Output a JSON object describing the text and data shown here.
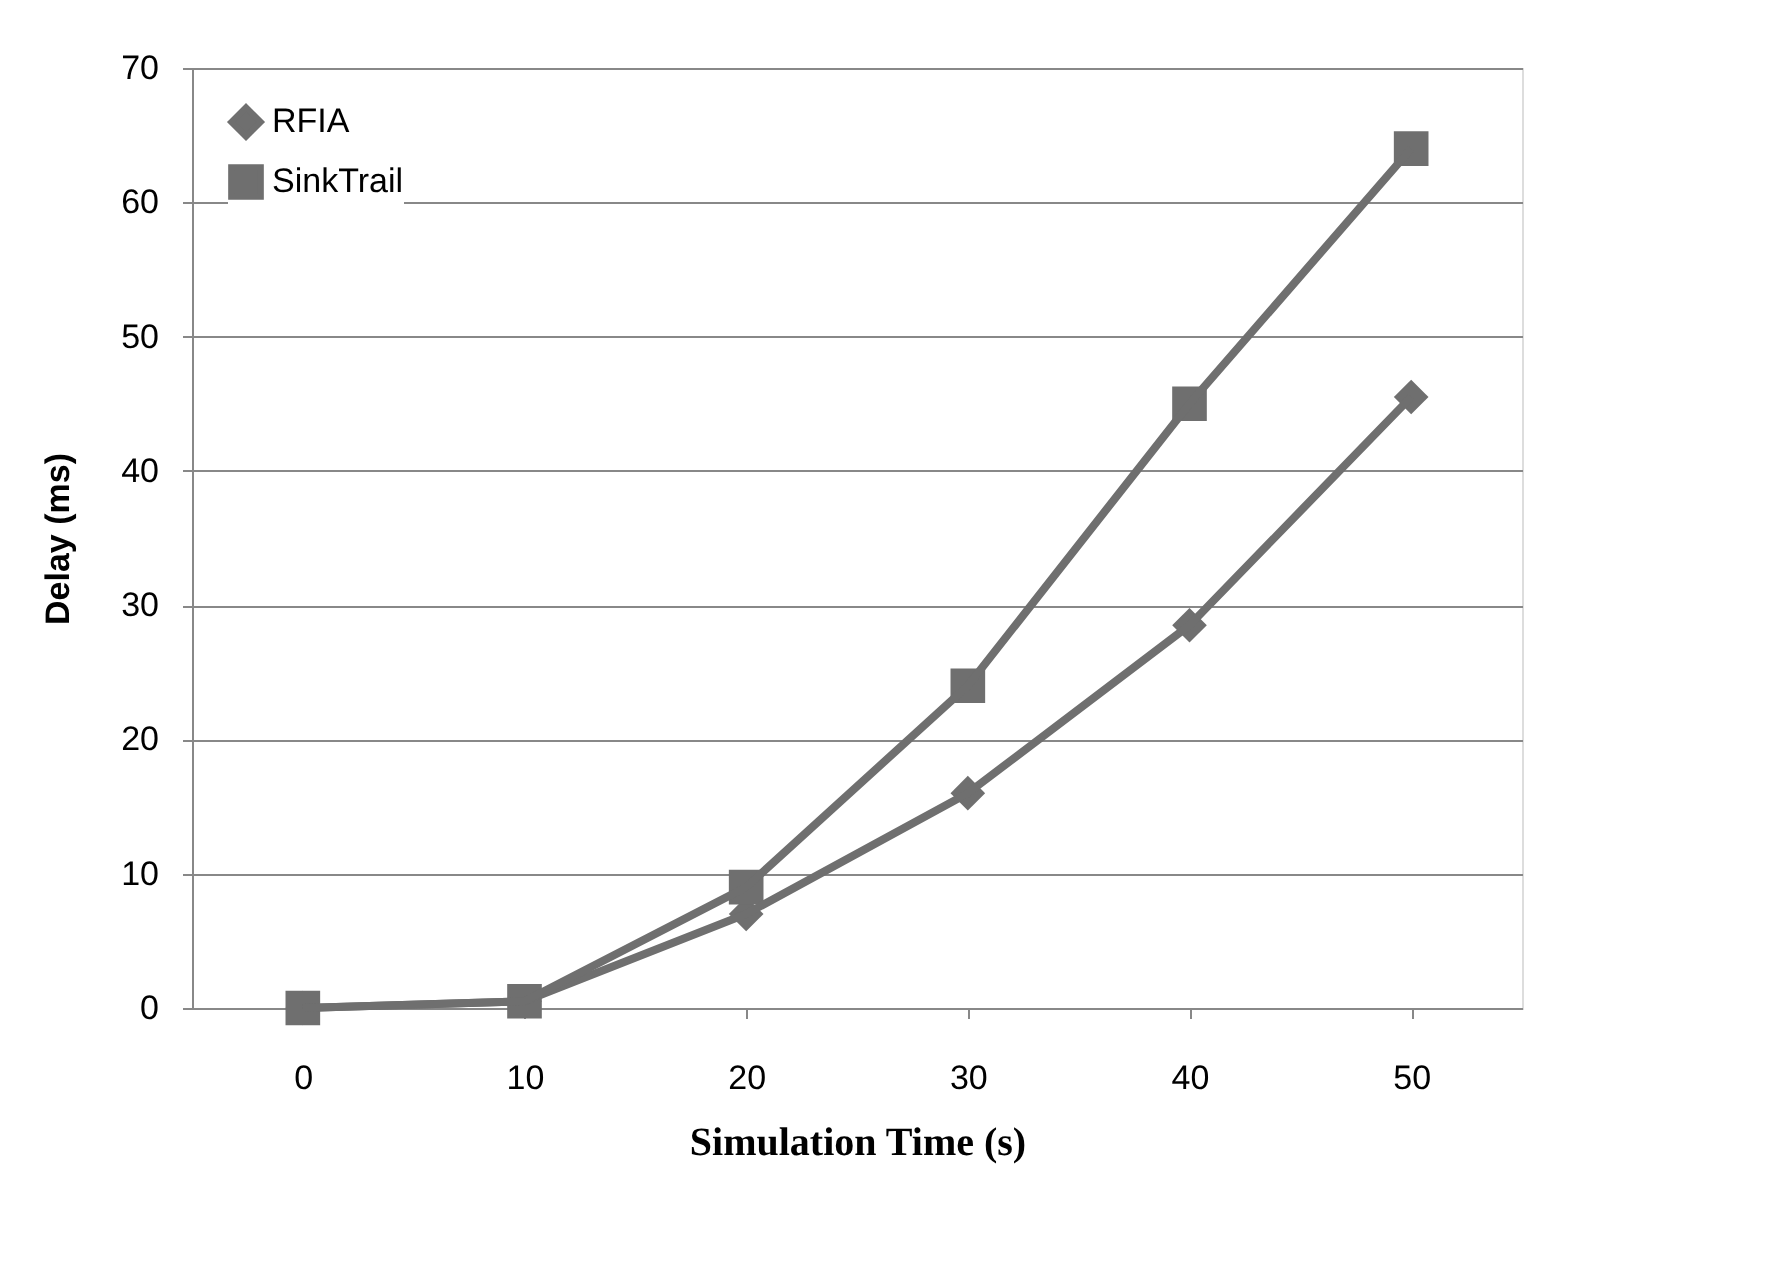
{
  "chart_data": {
    "type": "line",
    "xlabel": "Simulation Time (s)",
    "ylabel": "Delay  (ms)",
    "categories": [
      "0",
      "10",
      "20",
      "30",
      "40",
      "50"
    ],
    "series": [
      {
        "name": "RFIA",
        "color": "#6f6f6f",
        "marker": "diamond",
        "values": [
          0,
          0.5,
          7,
          16,
          28.5,
          45.5
        ]
      },
      {
        "name": "SinkTrail",
        "color": "#6f6f6f",
        "marker": "square",
        "values": [
          0,
          0.5,
          9,
          24,
          45,
          64
        ]
      }
    ],
    "ylim": [
      0,
      70
    ],
    "yticks": [
      0,
      10,
      20,
      30,
      40,
      50,
      60,
      70
    ],
    "grid": "y",
    "legend": "top left",
    "line_style": "solid"
  }
}
